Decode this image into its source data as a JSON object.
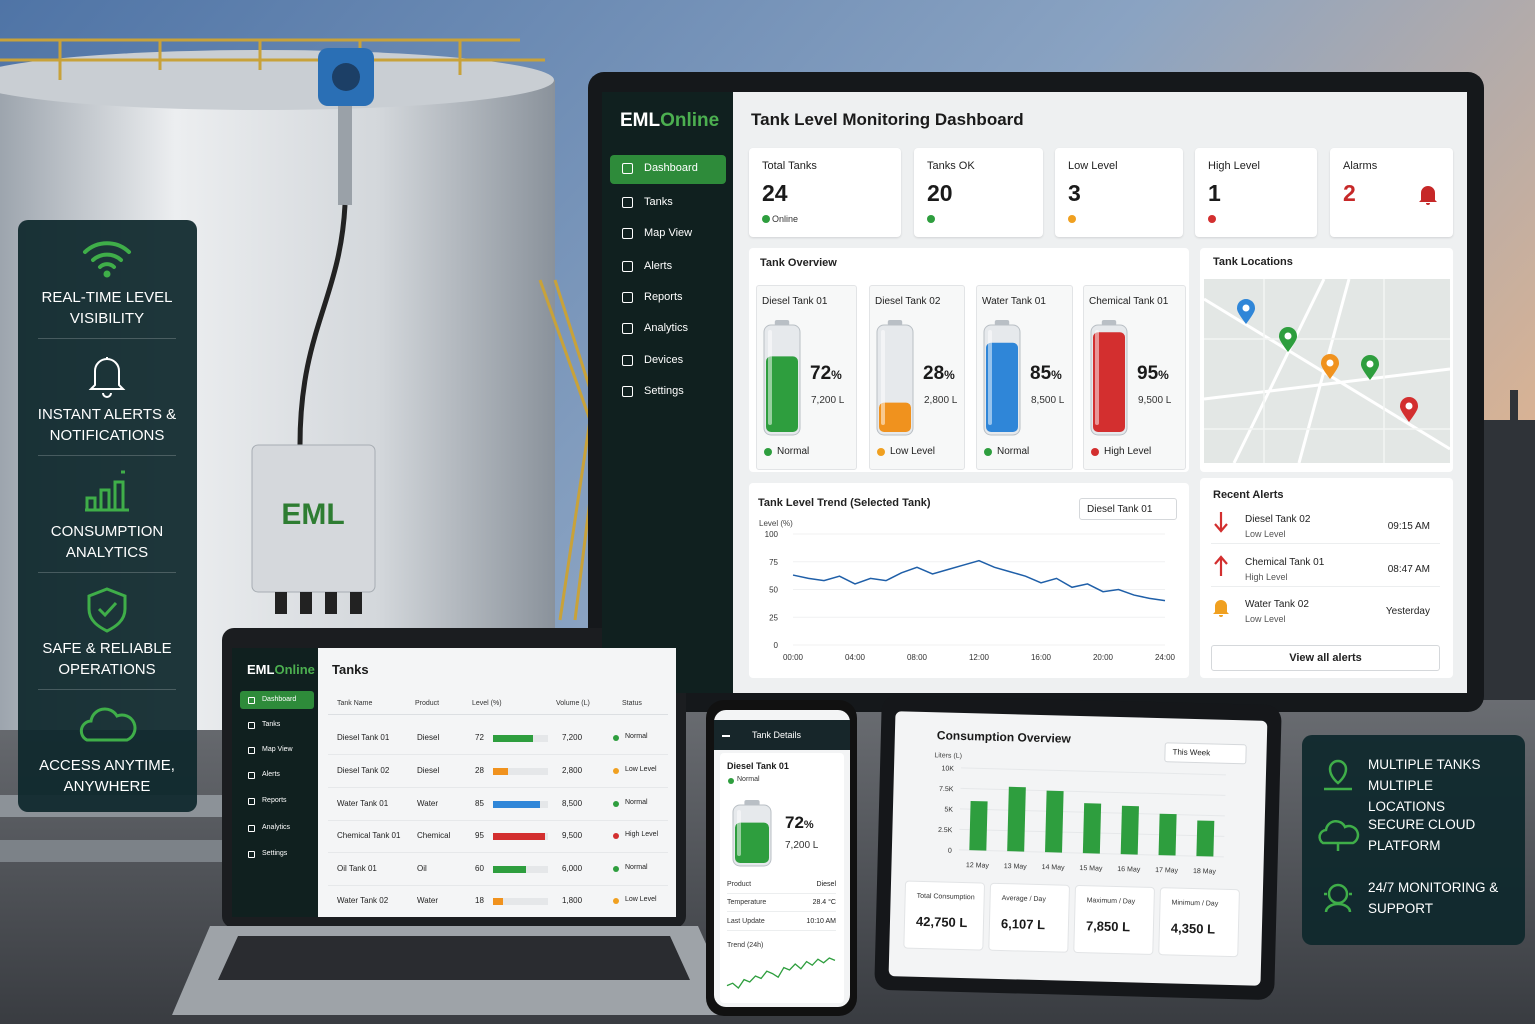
{
  "left_features": [
    "REAL-TIME LEVEL VISIBILITY",
    "INSTANT ALERTS & NOTIFICATIONS",
    "CONSUMPTION ANALYTICS",
    "SAFE & RELIABLE OPERATIONS",
    "ACCESS ANYTIME, ANYWHERE"
  ],
  "device_label": "EML",
  "dashboard": {
    "brand": {
      "prefix": "EML",
      "suffix": "Online"
    },
    "nav": [
      "Dashboard",
      "Tanks",
      "Map View",
      "Alerts",
      "Reports",
      "Analytics",
      "Devices",
      "Settings"
    ],
    "title": "Tank Level Monitoring Dashboard",
    "kpis": [
      {
        "label": "Total Tanks",
        "value": 24,
        "note": "Online",
        "color": "#2e9e3e"
      },
      {
        "label": "Tanks OK",
        "value": 20,
        "color": "#2e9e3e"
      },
      {
        "label": "Low Level",
        "value": 3,
        "color": "#f0a020"
      },
      {
        "label": "High Level",
        "value": 1,
        "color": "#d32f2f"
      },
      {
        "label": "Alarms",
        "value": 2,
        "color": "#c62828"
      }
    ],
    "overview": {
      "title": "Tank Overview",
      "tanks": [
        {
          "name": "Diesel Tank 01",
          "level": 72,
          "unit": "%",
          "volume": "7,200 L",
          "status": "Normal",
          "fill": "#2e9e3e",
          "status_color": "#2e9e3e"
        },
        {
          "name": "Diesel Tank 02",
          "level": 28,
          "unit": "%",
          "volume": "2,800 L",
          "status": "Low Level",
          "fill": "#f0921e",
          "status_color": "#f0a020"
        },
        {
          "name": "Water Tank 01",
          "level": 85,
          "unit": "%",
          "volume": "8,500 L",
          "status": "Normal",
          "fill": "#2f86d8",
          "status_color": "#2e9e3e"
        },
        {
          "name": "Chemical Tank 01",
          "level": 95,
          "unit": "%",
          "volume": "9,500 L",
          "status": "High Level",
          "fill": "#d32f2f",
          "status_color": "#d32f2f"
        }
      ]
    },
    "locations": {
      "title": "Tank Locations"
    },
    "trend": {
      "title": "Tank Level Trend (Selected Tank)",
      "selector": "Diesel Tank 01",
      "ylabel": "Level (%)",
      "ylim": [
        0,
        100
      ],
      "yticks": [
        0,
        25,
        50,
        75,
        100
      ],
      "xlim": [
        0,
        24
      ],
      "xticks": [
        {
          "value": 0,
          "label": "00:00"
        },
        {
          "value": 4,
          "label": "04:00"
        },
        {
          "value": 8,
          "label": "08:00"
        },
        {
          "value": 12,
          "label": "12:00"
        },
        {
          "value": 16,
          "label": "16:00"
        },
        {
          "value": 20,
          "label": "20:00"
        },
        {
          "value": 24,
          "label": "24:00"
        }
      ],
      "x": [
        0,
        1,
        2,
        3,
        4,
        5,
        6,
        7,
        8,
        9,
        10,
        11,
        12,
        13,
        14,
        15,
        16,
        17,
        18,
        19,
        20,
        21,
        22,
        23,
        24
      ],
      "values": [
        63,
        60,
        58,
        62,
        55,
        60,
        58,
        65,
        70,
        64,
        68,
        72,
        76,
        70,
        66,
        62,
        56,
        60,
        52,
        55,
        48,
        50,
        45,
        42,
        40
      ],
      "color": "#1f5fa8"
    },
    "alerts": {
      "title": "Recent Alerts",
      "items": [
        {
          "name": "Diesel Tank 02",
          "level": "Low Level",
          "time": "09:15 AM",
          "color": "#d32f2f"
        },
        {
          "name": "Chemical Tank 01",
          "level": "High Level",
          "time": "08:47 AM",
          "color": "#d32f2f"
        },
        {
          "name": "Water Tank 02",
          "level": "Low Level",
          "time": "Yesterday",
          "color": "#f0a020"
        }
      ],
      "button": "View all alerts"
    }
  },
  "laptop": {
    "brand": {
      "prefix": "EML",
      "suffix": "Online"
    },
    "nav": [
      "Dashboard",
      "Tanks",
      "Map View",
      "Alerts",
      "Reports",
      "Analytics",
      "Settings"
    ],
    "title": "Tanks",
    "columns": [
      "Tank Name",
      "Product",
      "Level (%)",
      "Volume (L)",
      "Status"
    ],
    "rows": [
      {
        "name": "Diesel Tank 01",
        "product": "Diesel",
        "level": 72,
        "volume": "7,200",
        "status": "Normal",
        "bar_color": "#2e9e3e",
        "status_color": "#2e9e3e"
      },
      {
        "name": "Diesel Tank 02",
        "product": "Diesel",
        "level": 28,
        "volume": "2,800",
        "status": "Low Level",
        "bar_color": "#f0921e",
        "status_color": "#f0a020"
      },
      {
        "name": "Water Tank 01",
        "product": "Water",
        "level": 85,
        "volume": "8,500",
        "status": "Normal",
        "bar_color": "#2f86d8",
        "status_color": "#2e9e3e"
      },
      {
        "name": "Chemical Tank 01",
        "product": "Chemical",
        "level": 95,
        "volume": "9,500",
        "status": "High Level",
        "bar_color": "#d32f2f",
        "status_color": "#d32f2f"
      },
      {
        "name": "Oil Tank 01",
        "product": "Oil",
        "level": 60,
        "volume": "6,000",
        "status": "Normal",
        "bar_color": "#2e9e3e",
        "status_color": "#2e9e3e"
      },
      {
        "name": "Water Tank 02",
        "product": "Water",
        "level": 18,
        "volume": "1,800",
        "status": "Low Level",
        "bar_color": "#f0921e",
        "status_color": "#f0a020"
      }
    ]
  },
  "phone": {
    "title": "Tank Details",
    "tank": "Diesel Tank 01",
    "status": "Normal",
    "status_color": "#2e9e3e",
    "level": 72,
    "unit": "%",
    "volume": "7,200 L",
    "fill": "#2e9e3e",
    "fields": [
      {
        "label": "Product",
        "value": "Diesel"
      },
      {
        "label": "Temperature",
        "value": "28.4 °C"
      },
      {
        "label": "Last Update",
        "value": "10:10 AM"
      }
    ],
    "trend_label": "Trend (24h)",
    "trend": [
      40,
      42,
      38,
      45,
      43,
      48,
      46,
      52,
      50,
      47,
      55,
      53,
      58,
      54,
      60,
      57,
      62,
      59,
      63,
      61
    ],
    "trend_color": "#2e9e3e"
  },
  "consumption": {
    "title": "Consumption Overview",
    "selector": "This Week",
    "ylabel": "Liters (L)",
    "ylim": [
      0,
      10000
    ],
    "yticks": [
      0,
      {
        "value": 2500,
        "label": "2.5K"
      },
      {
        "value": 5000,
        "label": "5K"
      },
      {
        "value": 7500,
        "label": "7.5K"
      },
      {
        "value": 10000,
        "label": "10K"
      }
    ],
    "categories": [
      "12 May",
      "13 May",
      "14 May",
      "15 May",
      "16 May",
      "17 May",
      "18 May"
    ],
    "values": [
      6000,
      7850,
      7500,
      6100,
      5900,
      5050,
      4350
    ],
    "color": "#2e9e3e",
    "stats": [
      {
        "label": "Total Consumption",
        "value": "42,750 L"
      },
      {
        "label": "Average / Day",
        "value": "6,107 L"
      },
      {
        "label": "Maximum / Day",
        "value": "7,850 L"
      },
      {
        "label": "Minimum / Day",
        "value": "4,350 L"
      }
    ]
  },
  "right_features": [
    "MULTIPLE TANKS MULTIPLE LOCATIONS",
    "SECURE CLOUD PLATFORM",
    "24/7 MONITORING & SUPPORT"
  ]
}
